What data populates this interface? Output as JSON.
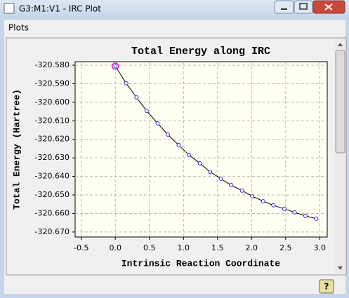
{
  "window": {
    "title": "G3:M1:V1 - IRC Plot",
    "menu": [
      "Plots"
    ]
  },
  "chart_data": {
    "type": "line",
    "title": "Total Energy along IRC",
    "x_label": "Intrinsic Reaction Coordinate",
    "y_label": "Total Energy (Hartree)",
    "x": [
      0,
      0.16,
      0.31,
      0.46,
      0.62,
      0.77,
      0.93,
      1.08,
      1.24,
      1.39,
      1.55,
      1.7,
      1.86,
      2.01,
      2.17,
      2.32,
      2.48,
      2.63,
      2.79,
      2.95
    ],
    "series": [
      {
        "color": "#2a2ad6",
        "values": [
          -320.5805,
          -320.5898,
          -320.5974,
          -320.6046,
          -320.6114,
          -320.6174,
          -320.6231,
          -320.6284,
          -320.6329,
          -320.6375,
          -320.6413,
          -320.6447,
          -320.6477,
          -320.6507,
          -320.6534,
          -320.6556,
          -320.6575,
          -320.6594,
          -320.6613,
          -320.6628
        ]
      }
    ],
    "xlim": [
      -0.59,
      3.11
    ],
    "ylim": [
      -320.6727,
      -320.5781
    ],
    "xticks": [
      -0.5,
      {
        "value": 0,
        "label": "0.0"
      },
      0.5,
      {
        "value": 1,
        "label": "1.0"
      },
      1.5,
      {
        "value": 2,
        "label": "2.0"
      },
      2.5,
      {
        "value": 3,
        "label": "3.0"
      }
    ],
    "yticks": [
      {
        "value": -320.58,
        "label": "-320.580"
      },
      {
        "value": -320.59,
        "label": "-320.590"
      },
      {
        "value": -320.6,
        "label": "-320.600"
      },
      {
        "value": -320.61,
        "label": "-320.610"
      },
      {
        "value": -320.62,
        "label": "-320.620"
      },
      {
        "value": -320.63,
        "label": "-320.630"
      },
      {
        "value": -320.64,
        "label": "-320.640"
      },
      {
        "value": -320.65,
        "label": "-320.650"
      },
      {
        "value": -320.66,
        "label": "-320.660"
      },
      {
        "value": -320.67,
        "label": "-320.670"
      }
    ],
    "grid": true,
    "line_color": "#000000",
    "highlight_color": "#d020d0"
  }
}
